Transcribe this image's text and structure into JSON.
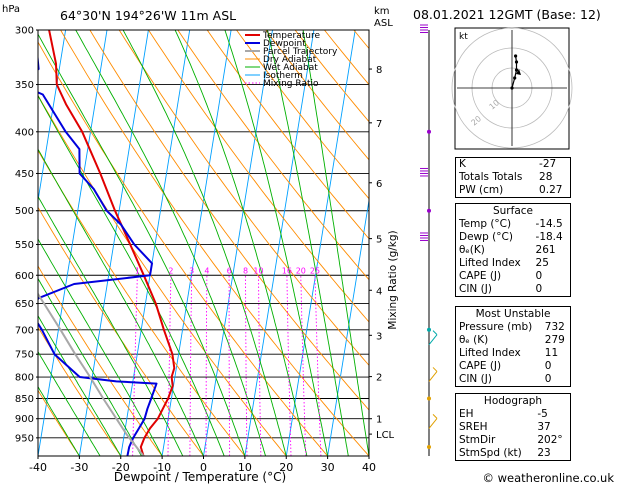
{
  "header": {
    "hpa_label": "hPa",
    "location": "64°30'N  194°26'W  11m  ASL",
    "km_label": "km",
    "asl_label": "ASL",
    "datetime": "08.01.2021  12GMT  (Base: 12)"
  },
  "chart_data": {
    "type": "line",
    "subtype": "skew-T log-P diagram",
    "xlabel": "Dewpoint / Temperature (°C)",
    "ylabel_right": "Mixing Ratio (g/kg)",
    "x_ticks": [
      -40,
      -30,
      -20,
      -10,
      0,
      10,
      20,
      30,
      40
    ],
    "x_range": [
      -40,
      40
    ],
    "p_range": [
      300,
      1000
    ],
    "pressure_levels": [
      300,
      350,
      400,
      450,
      500,
      550,
      600,
      650,
      700,
      750,
      800,
      850,
      900,
      950
    ],
    "km_ticks": [
      {
        "km": "8",
        "p": 335
      },
      {
        "km": "7",
        "p": 390
      },
      {
        "km": "6",
        "p": 462
      },
      {
        "km": "5",
        "p": 541
      },
      {
        "km": "4",
        "p": 626
      },
      {
        "km": "3",
        "p": 711
      },
      {
        "km": "2",
        "p": 799
      },
      {
        "km": "1",
        "p": 900
      },
      {
        "km": "LCL",
        "p": 940
      }
    ],
    "mixing_ratio_labels": [
      "1",
      "2",
      "3",
      "4",
      "6",
      "8",
      "10",
      "16",
      "20",
      "25"
    ],
    "mixing_ratio_values": [
      1,
      2,
      3,
      4,
      6,
      8,
      10,
      16,
      20,
      25
    ],
    "legend": [
      "Temperature",
      "Dewpoint",
      "Parcel Trajectory",
      "Dry Adiabat",
      "Wet Adiabat",
      "Isotherm",
      "Mixing Ratio"
    ],
    "legend_placement": "top-left inside plot",
    "series": [
      {
        "name": "Temperature",
        "color": "#e00000",
        "points": [
          [
            1000,
            -14.5
          ],
          [
            975,
            -15.5
          ],
          [
            950,
            -15
          ],
          [
            925,
            -14
          ],
          [
            900,
            -12.5
          ],
          [
            870,
            -11.5
          ],
          [
            850,
            -10.8
          ],
          [
            820,
            -10.2
          ],
          [
            800,
            -10.8
          ],
          [
            780,
            -10.5
          ],
          [
            750,
            -11.5
          ],
          [
            700,
            -14.5
          ],
          [
            650,
            -17.5
          ],
          [
            600,
            -21.5
          ],
          [
            550,
            -26
          ],
          [
            500,
            -31
          ],
          [
            450,
            -36
          ],
          [
            400,
            -42
          ],
          [
            370,
            -47
          ],
          [
            350,
            -50
          ],
          [
            330,
            -51
          ],
          [
            300,
            -54
          ]
        ]
      },
      {
        "name": "Dewpoint",
        "color": "#0000dd",
        "points": [
          [
            1000,
            -18.4
          ],
          [
            975,
            -18.3
          ],
          [
            950,
            -17.7
          ],
          [
            925,
            -16.7
          ],
          [
            900,
            -15.7
          ],
          [
            875,
            -15.4
          ],
          [
            850,
            -14.9
          ],
          [
            830,
            -14.5
          ],
          [
            815,
            -14.2
          ],
          [
            810,
            -24
          ],
          [
            800,
            -33
          ],
          [
            750,
            -40
          ],
          [
            700,
            -44
          ],
          [
            660,
            -48
          ],
          [
            640,
            -46
          ],
          [
            615,
            -38
          ],
          [
            600,
            -20
          ],
          [
            580,
            -20
          ],
          [
            550,
            -25
          ],
          [
            520,
            -29
          ],
          [
            500,
            -33
          ],
          [
            470,
            -37
          ],
          [
            450,
            -41
          ],
          [
            420,
            -42
          ],
          [
            400,
            -46
          ],
          [
            360,
            -53
          ],
          [
            350,
            -59
          ],
          [
            335,
            -55
          ],
          [
            320,
            -56
          ],
          [
            300,
            -60
          ]
        ]
      },
      {
        "name": "Parcel Trajectory",
        "color": "#aaaaaa",
        "points": [
          [
            1000,
            -14.5
          ],
          [
            940,
            -19.5
          ],
          [
            900,
            -22.5
          ],
          [
            850,
            -26.5
          ],
          [
            800,
            -30.5
          ],
          [
            750,
            -35
          ],
          [
            700,
            -39.5
          ],
          [
            650,
            -44.5
          ],
          [
            600,
            -50
          ],
          [
            550,
            -55.5
          ],
          [
            500,
            -61
          ]
        ]
      }
    ]
  },
  "hodograph": {
    "unit_label": "kt",
    "ring_labels": [
      "10",
      "20"
    ],
    "points": [
      [
        0,
        0
      ],
      [
        3,
        5
      ],
      [
        5,
        9
      ],
      [
        5,
        13
      ],
      [
        4,
        16
      ]
    ]
  },
  "indices": {
    "rows": [
      {
        "label": "K",
        "value": "-27"
      },
      {
        "label": "Totals Totals",
        "value": "28"
      },
      {
        "label": "PW (cm)",
        "value": "0.27"
      }
    ]
  },
  "surface": {
    "title": "Surface",
    "rows": [
      {
        "label": "Temp (°C)",
        "value": "-14.5"
      },
      {
        "label": "Dewp (°C)",
        "value": "-18.4"
      },
      {
        "label": "θₑ(K)",
        "value": "261"
      },
      {
        "label": "Lifted Index",
        "value": "25"
      },
      {
        "label": "CAPE (J)",
        "value": "0"
      },
      {
        "label": "CIN (J)",
        "value": "0"
      }
    ]
  },
  "most_unstable": {
    "title": "Most Unstable",
    "rows": [
      {
        "label": "Pressure (mb)",
        "value": "732"
      },
      {
        "label": "θₑ (K)",
        "value": "279"
      },
      {
        "label": "Lifted Index",
        "value": "11"
      },
      {
        "label": "CAPE (J)",
        "value": "0"
      },
      {
        "label": "CIN (J)",
        "value": "0"
      }
    ]
  },
  "hodograph_stats": {
    "title": "Hodograph",
    "rows": [
      {
        "label": "EH",
        "value": "-5"
      },
      {
        "label": "SREH",
        "value": "37"
      },
      {
        "label": "StmDir",
        "value": "202°"
      },
      {
        "label": "StmSpd (kt)",
        "value": "23"
      }
    ]
  },
  "footer": {
    "copyright": "© weatheronline.co.uk"
  }
}
